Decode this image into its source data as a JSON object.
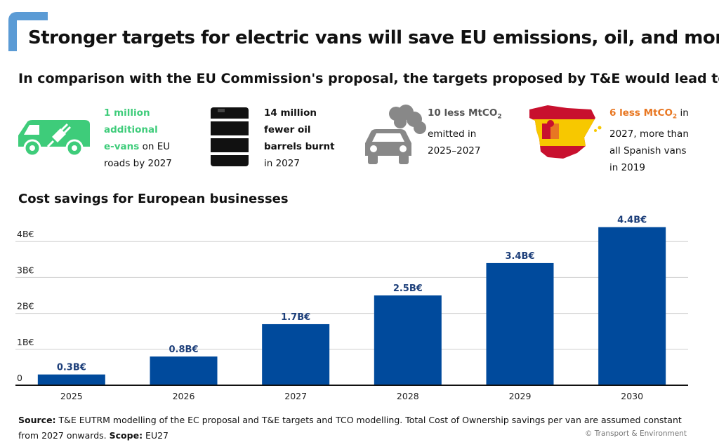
{
  "title": "Stronger targets for electric vans will save EU emissions, oil, and money",
  "subtitle": "In comparison with the EU Commission's proposal, the targets proposed by T&E would lead to:",
  "stats": [
    {
      "icon": "electric-van-icon",
      "highlight": "1 million additional e-vans",
      "line1": "1 million",
      "line2": "additional",
      "line3_hl": "e-vans",
      "line3_rest": " on EU",
      "line4": "roads by 2027"
    },
    {
      "icon": "oil-barrel-icon",
      "line1": "14 million",
      "line2": "fewer oil",
      "line3": "barrels burnt",
      "line4": "in 2027"
    },
    {
      "icon": "polluting-car-icon",
      "line1": "10 less MtCO",
      "sub": "2",
      "line2": "emitted in",
      "line3": "2025–2027"
    },
    {
      "icon": "spain-map-icon",
      "line1_hl": "6 less MtCO",
      "sub": "2",
      "line1_rest": " in",
      "line2": "2027, more than",
      "line3": "all Spanish vans",
      "line4": "in 2019"
    }
  ],
  "section_title": "Cost savings for European businesses",
  "chart_data": {
    "type": "bar",
    "categories": [
      "2025",
      "2026",
      "2027",
      "2028",
      "2029",
      "2030"
    ],
    "values": [
      0.3,
      0.8,
      1.7,
      2.5,
      3.4,
      4.4
    ],
    "data_labels": [
      "0.3B€",
      "0.8B€",
      "1.7B€",
      "2.5B€",
      "3.4B€",
      "4.4B€"
    ],
    "y_ticks": [
      0,
      1,
      2,
      3,
      4
    ],
    "y_tick_labels": [
      "0",
      "1B€",
      "2B€",
      "3B€",
      "4B€"
    ],
    "ylim": [
      0,
      4.4
    ],
    "grid": true,
    "bar_color": "#004a9c",
    "label_color": "#1d3f7a"
  },
  "source_label": "Source:",
  "source_text": " T&E EUTRM modelling of the EC proposal and T&E targets and TCO modelling. Total Cost of Ownership savings per van are assumed constant from 2027 onwards.",
  "scope_label": "Scope:",
  "scope_text": " EU27",
  "copyright": "© Transport & Environment",
  "colors": {
    "accent_blue": "#5b9bd5",
    "green": "#3ecc7a",
    "orange": "#e87722",
    "spain_red": "#c8102e",
    "spain_yellow": "#f7c800"
  }
}
